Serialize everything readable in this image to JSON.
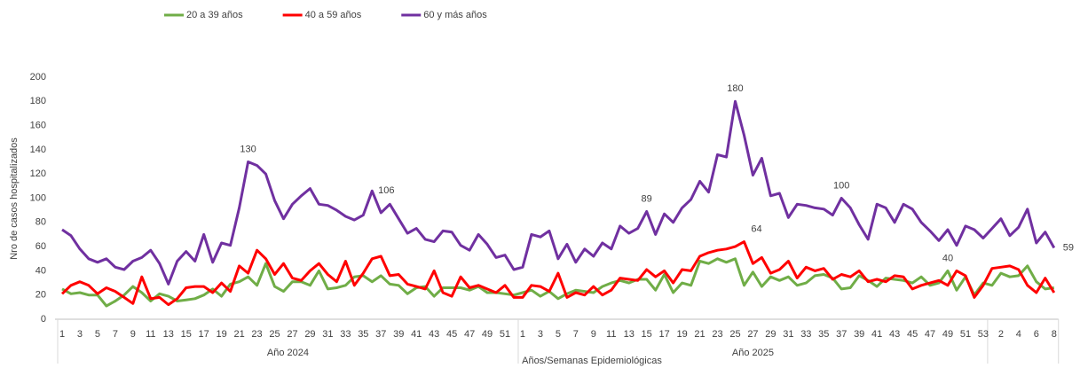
{
  "chart_data": {
    "type": "line",
    "ylabel": "Nro de casos hospitalizados",
    "xlabel": "Años/Semanas Epidemiológicas",
    "groups": [
      "Año 2024",
      "Año 2025"
    ],
    "categories": [
      "1",
      null,
      "3",
      null,
      "5",
      null,
      "7",
      null,
      "9",
      null,
      "11",
      null,
      "13",
      null,
      "15",
      null,
      "17",
      null,
      "19",
      null,
      "21",
      null,
      "23",
      null,
      "25",
      null,
      "27",
      null,
      "29",
      null,
      "31",
      null,
      "33",
      null,
      "35",
      null,
      "37",
      null,
      "39",
      null,
      "41",
      null,
      "43",
      null,
      "45",
      null,
      "47",
      null,
      "49",
      null,
      "51",
      null,
      "1",
      null,
      "3",
      null,
      "5",
      null,
      "7",
      null,
      "9",
      null,
      "11",
      null,
      "13",
      null,
      "15",
      null,
      "17",
      null,
      "19",
      null,
      "21",
      null,
      "23",
      null,
      "25",
      null,
      "27",
      null,
      "29",
      null,
      "31",
      null,
      "33",
      null,
      "35",
      null,
      "37",
      null,
      "39",
      null,
      "41",
      null,
      "43",
      null,
      "45",
      null,
      "47",
      null,
      "49",
      null,
      "51",
      null,
      "53",
      null,
      "2",
      null,
      "4",
      null,
      "6",
      null,
      "8"
    ],
    "series": [
      {
        "name": "20 a 39 años",
        "color": "#70ad47",
        "values": [
          25,
          21,
          22,
          20,
          20,
          11,
          15,
          20,
          27,
          22,
          15,
          21,
          19,
          15,
          16,
          17,
          20,
          25,
          19,
          29,
          31,
          35,
          28,
          46,
          27,
          23,
          31,
          31,
          28,
          40,
          25,
          26,
          28,
          35,
          36,
          31,
          36,
          29,
          28,
          21,
          26,
          27,
          19,
          26,
          26,
          26,
          24,
          27,
          22,
          22,
          21,
          20,
          22,
          24,
          19,
          23,
          17,
          21,
          24,
          23,
          22,
          27,
          30,
          32,
          30,
          33,
          33,
          24,
          37,
          22,
          30,
          28,
          48,
          46,
          50,
          47,
          50,
          28,
          39,
          27,
          35,
          32,
          35,
          28,
          30,
          36,
          37,
          34,
          25,
          26,
          36,
          32,
          27,
          34,
          33,
          32,
          30,
          35,
          28,
          30,
          40,
          24,
          35,
          20,
          30,
          28,
          38,
          35,
          36,
          44,
          31,
          25,
          26
        ],
        "value_labels": [
          null,
          null,
          null,
          null,
          null,
          null,
          null,
          null,
          null,
          null,
          null,
          null,
          null,
          null,
          null,
          null,
          null,
          null,
          null,
          null,
          null,
          null,
          null,
          null,
          null,
          null,
          null,
          null,
          null,
          null,
          null,
          null,
          null,
          null,
          null,
          null,
          null,
          null,
          null,
          null,
          null,
          null,
          null,
          null,
          null,
          null,
          null,
          null,
          null,
          null,
          null,
          null,
          null,
          null,
          null,
          null,
          null,
          null,
          null,
          null,
          null,
          null,
          null,
          null,
          null,
          null,
          null,
          null,
          null,
          null,
          null,
          null,
          null,
          null,
          null,
          null,
          null,
          null,
          null,
          null,
          null,
          null,
          null,
          null,
          null,
          null,
          null,
          null,
          null,
          null,
          null,
          null,
          null,
          null,
          null,
          null,
          null,
          null,
          null,
          null,
          "40",
          null,
          null,
          null,
          null,
          null,
          null,
          null,
          null,
          null,
          null,
          null,
          null
        ]
      },
      {
        "name": "40 a 59 años",
        "color": "#ff0000",
        "values": [
          21,
          28,
          31,
          28,
          21,
          26,
          23,
          18,
          13,
          35,
          17,
          18,
          12,
          17,
          26,
          27,
          27,
          22,
          30,
          23,
          44,
          38,
          57,
          50,
          37,
          46,
          34,
          32,
          40,
          46,
          37,
          31,
          48,
          28,
          38,
          50,
          52,
          36,
          37,
          29,
          27,
          25,
          40,
          22,
          19,
          35,
          26,
          28,
          25,
          22,
          28,
          18,
          18,
          28,
          27,
          23,
          38,
          18,
          22,
          20,
          27,
          20,
          24,
          34,
          33,
          32,
          41,
          35,
          40,
          30,
          41,
          40,
          52,
          55,
          57,
          58,
          60,
          64,
          46,
          51,
          38,
          41,
          48,
          34,
          43,
          40,
          42,
          33,
          37,
          35,
          40,
          31,
          33,
          31,
          36,
          35,
          25,
          28,
          30,
          32,
          28,
          40,
          36,
          18,
          28,
          42,
          43,
          44,
          41,
          28,
          22,
          34,
          22
        ],
        "value_labels": [
          null,
          null,
          null,
          null,
          null,
          null,
          null,
          null,
          null,
          null,
          null,
          null,
          null,
          null,
          null,
          null,
          null,
          null,
          null,
          null,
          null,
          null,
          null,
          null,
          null,
          null,
          null,
          null,
          null,
          null,
          null,
          null,
          null,
          null,
          null,
          null,
          null,
          null,
          null,
          null,
          null,
          null,
          null,
          null,
          null,
          null,
          null,
          null,
          null,
          null,
          null,
          null,
          null,
          null,
          null,
          null,
          null,
          null,
          null,
          null,
          null,
          null,
          null,
          null,
          null,
          null,
          null,
          null,
          null,
          null,
          null,
          null,
          null,
          null,
          null,
          null,
          null,
          "64",
          null,
          null,
          null,
          null,
          null,
          null,
          null,
          null,
          null,
          null,
          null,
          null,
          null,
          null,
          null,
          null,
          null,
          null,
          null,
          null,
          null,
          null,
          null,
          null,
          null,
          null,
          null,
          null,
          null,
          null,
          null,
          null,
          null,
          null,
          null
        ]
      },
      {
        "name": "60 y más años",
        "color": "#7030a0",
        "values": [
          74,
          69,
          58,
          50,
          47,
          50,
          43,
          41,
          48,
          51,
          57,
          46,
          29,
          48,
          56,
          48,
          70,
          47,
          63,
          61,
          92,
          130,
          127,
          120,
          98,
          83,
          95,
          102,
          108,
          95,
          94,
          90,
          85,
          82,
          86,
          106,
          88,
          95,
          83,
          71,
          75,
          66,
          64,
          73,
          72,
          61,
          57,
          70,
          62,
          51,
          53,
          41,
          43,
          70,
          68,
          73,
          50,
          62,
          47,
          58,
          52,
          63,
          58,
          77,
          71,
          75,
          89,
          70,
          87,
          80,
          92,
          99,
          114,
          105,
          136,
          134,
          180,
          152,
          119,
          133,
          102,
          104,
          84,
          95,
          94,
          92,
          91,
          86,
          100,
          92,
          78,
          66,
          95,
          92,
          80,
          95,
          91,
          80,
          73,
          65,
          74,
          61,
          77,
          74,
          67,
          75,
          83,
          69,
          76,
          91,
          63,
          72,
          59
        ],
        "value_labels": [
          null,
          null,
          null,
          null,
          null,
          null,
          null,
          null,
          null,
          null,
          null,
          null,
          null,
          null,
          null,
          null,
          null,
          null,
          null,
          null,
          null,
          "130",
          null,
          null,
          null,
          null,
          null,
          null,
          null,
          null,
          null,
          null,
          null,
          null,
          null,
          "106",
          null,
          null,
          null,
          null,
          null,
          null,
          null,
          null,
          null,
          null,
          null,
          null,
          null,
          null,
          null,
          null,
          null,
          null,
          null,
          null,
          null,
          null,
          null,
          null,
          null,
          null,
          null,
          null,
          null,
          null,
          "89",
          null,
          null,
          null,
          null,
          null,
          null,
          null,
          null,
          null,
          "180",
          null,
          null,
          null,
          null,
          null,
          null,
          null,
          null,
          null,
          null,
          null,
          "100",
          null,
          null,
          null,
          null,
          null,
          null,
          null,
          null,
          null,
          null,
          null,
          null,
          null,
          null,
          null,
          null,
          null,
          null,
          null,
          null,
          null,
          null,
          null,
          "59"
        ]
      }
    ],
    "ylim": [
      0,
      200
    ],
    "yticks": [
      0,
      20,
      40,
      60,
      80,
      100,
      120,
      140,
      160,
      180,
      200
    ],
    "grid": false,
    "legend": "top"
  }
}
